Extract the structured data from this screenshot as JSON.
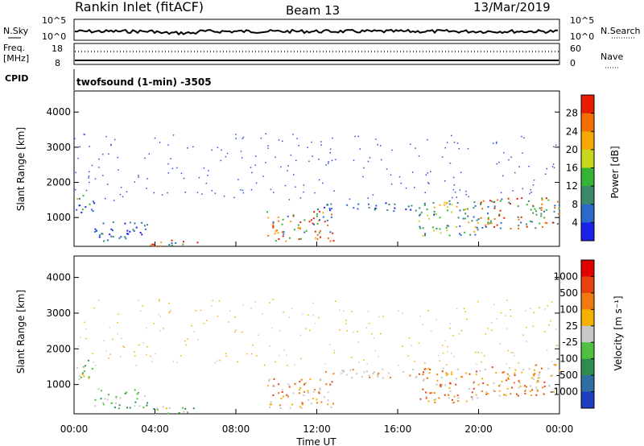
{
  "header": {
    "station": "Rankin Inlet (fitACF)",
    "beam": "Beam 13",
    "date": "13/Mar/2019"
  },
  "status_panels": {
    "nsky_label": "N.Sky",
    "nsky_ticks": [
      "10^5",
      "10^0"
    ],
    "nsearch_label": "N.Search",
    "nsearch_ticks": [
      "10^5",
      "10^0"
    ],
    "freq_label": "Freq.",
    "freq_unit": "[MHz]",
    "freq_ticks": [
      "18",
      "8"
    ],
    "nave_label": "Nave",
    "nave_ticks": [
      "60",
      "0"
    ],
    "cpid_label": "CPID",
    "cpid_text": "twofsound (1-min) -3505"
  },
  "chart_data": [
    {
      "type": "heatmap",
      "panel": "power",
      "ylabel": "Slant Range [km]",
      "ylim": [
        180,
        4600
      ],
      "y_ticks": [
        1000,
        2000,
        3000,
        4000
      ],
      "x_ticks": [
        "00:00",
        "04:00",
        "08:00",
        "12:00",
        "16:00",
        "20:00",
        "00:00"
      ],
      "xlim_hours": [
        0,
        24
      ],
      "colorbar_label": "Power [dB]",
      "colorbar_ticks": [
        "4",
        "8",
        "12",
        "16",
        "20",
        "24",
        "28"
      ],
      "colorbar_colors": [
        "#1a20e6",
        "#2a6ac8",
        "#3a8a6a",
        "#34b334",
        "#c8d61e",
        "#f5a800",
        "#f26f00",
        "#e81c00"
      ],
      "scatter_regions": [
        {
          "t0": 0.0,
          "t1": 1.0,
          "r0": 1150,
          "r1": 1700,
          "level": "mixed-low"
        },
        {
          "t0": 1.0,
          "t1": 3.6,
          "r0": 350,
          "r1": 900,
          "level": "low"
        },
        {
          "t0": 3.6,
          "t1": 6.2,
          "r0": 180,
          "r1": 400,
          "level": "high"
        },
        {
          "t0": 9.5,
          "t1": 12.8,
          "r0": 350,
          "r1": 1200,
          "level": "high"
        },
        {
          "t0": 12.0,
          "t1": 17.0,
          "r0": 1200,
          "r1": 1450,
          "level": "low"
        },
        {
          "t0": 17.0,
          "t1": 20.0,
          "r0": 500,
          "r1": 1500,
          "level": "mid"
        },
        {
          "t0": 20.0,
          "t1": 24.0,
          "r0": 700,
          "r1": 1600,
          "level": "mid-high"
        }
      ]
    },
    {
      "type": "heatmap",
      "panel": "velocity",
      "ylabel": "Slant Range [km]",
      "xlabel": "Time UT",
      "ylim": [
        180,
        4600
      ],
      "y_ticks": [
        1000,
        2000,
        3000,
        4000
      ],
      "x_ticks": [
        "00:00",
        "04:00",
        "08:00",
        "12:00",
        "16:00",
        "20:00",
        "00:00"
      ],
      "xlim_hours": [
        0,
        24
      ],
      "colorbar_label": "Velocity [m s⁻¹]",
      "colorbar_ticks": [
        "1000",
        "500",
        "100",
        "25",
        "-25",
        "-100",
        "-500",
        "-1000"
      ],
      "colorbar_colors": [
        "#1c3fc2",
        "#2e6ea0",
        "#2e8c50",
        "#50c040",
        "#c8c8c8",
        "#f5b000",
        "#f07a10",
        "#e84010",
        "#e00000"
      ],
      "scatter_regions": [
        {
          "t0": 0.0,
          "t1": 1.0,
          "r0": 1150,
          "r1": 1700,
          "level": "green"
        },
        {
          "t0": 1.0,
          "t1": 3.6,
          "r0": 350,
          "r1": 900,
          "level": "grey-green"
        },
        {
          "t0": 3.6,
          "t1": 6.2,
          "r0": 180,
          "r1": 400,
          "level": "green"
        },
        {
          "t0": 9.5,
          "t1": 12.8,
          "r0": 350,
          "r1": 1200,
          "level": "orange"
        },
        {
          "t0": 12.0,
          "t1": 17.0,
          "r0": 1200,
          "r1": 1450,
          "level": "grey"
        },
        {
          "t0": 17.0,
          "t1": 20.0,
          "r0": 500,
          "r1": 1500,
          "level": "orange"
        },
        {
          "t0": 20.0,
          "t1": 24.0,
          "r0": 700,
          "r1": 1600,
          "level": "orange"
        }
      ]
    }
  ]
}
